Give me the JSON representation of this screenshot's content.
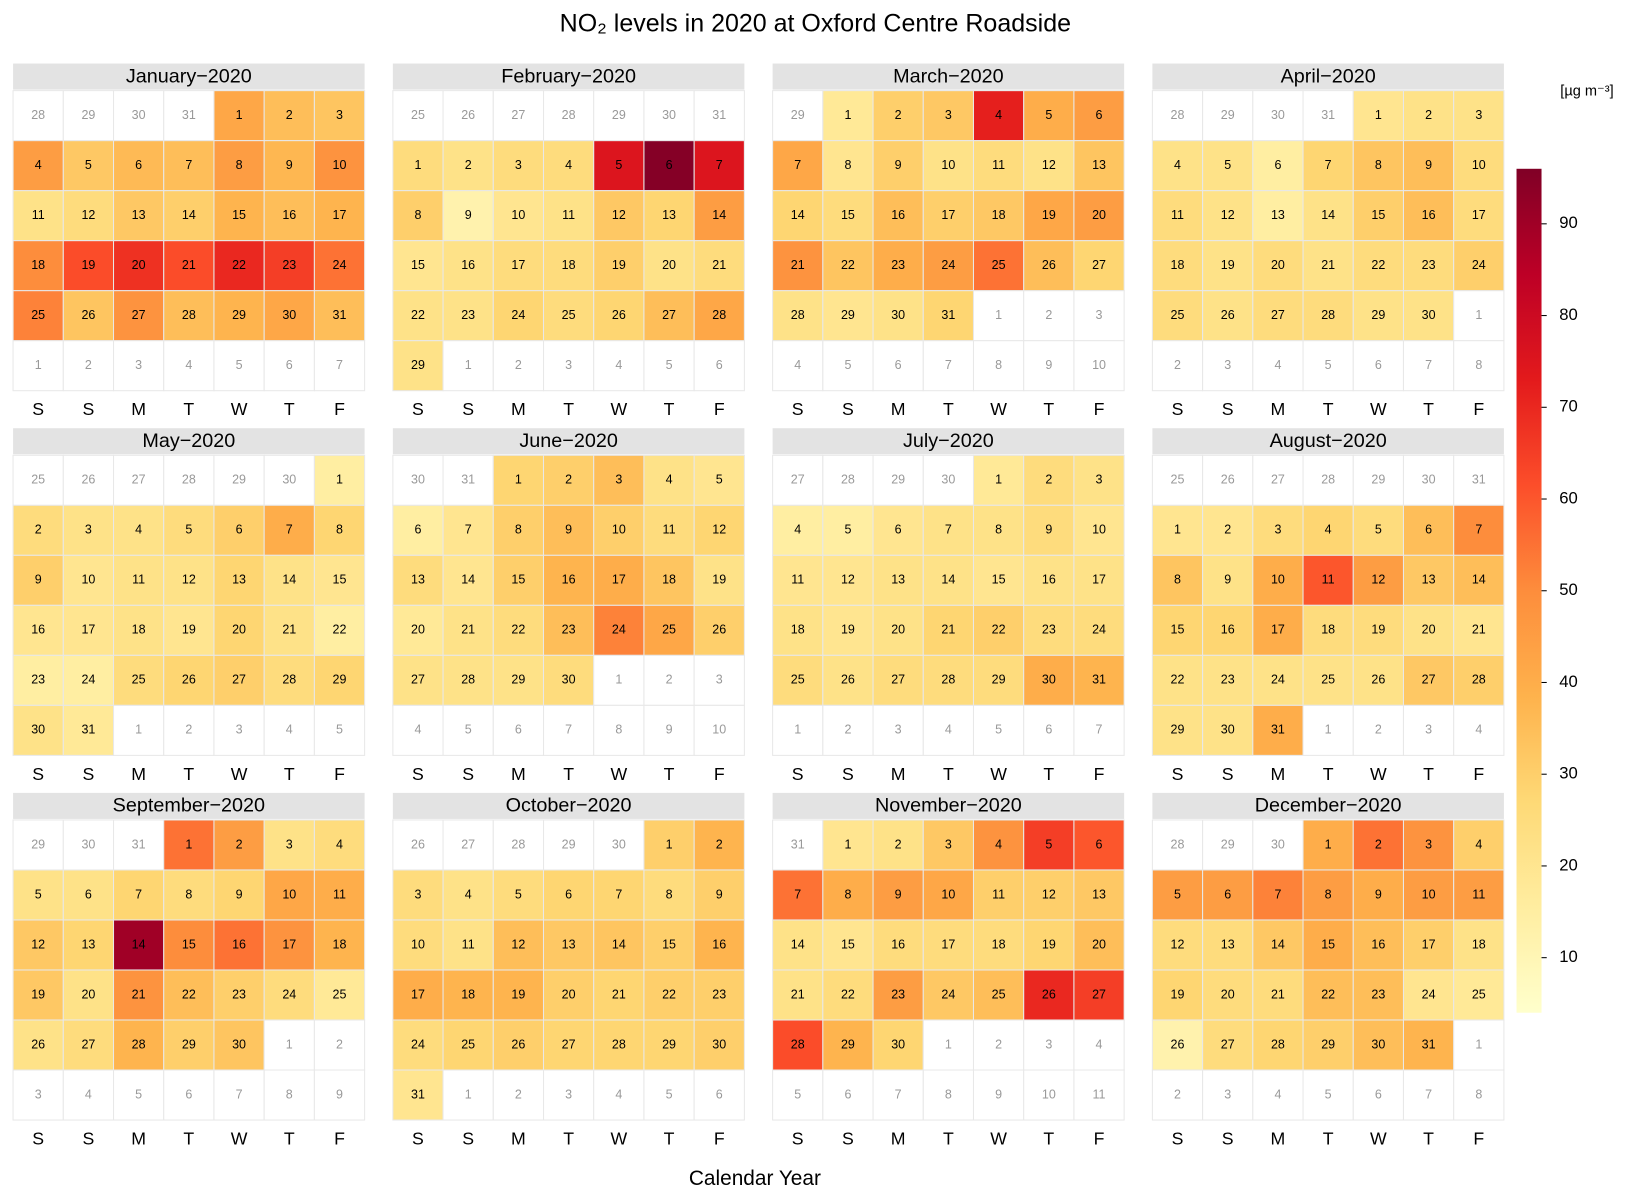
{
  "chart_data": {
    "type": "calendar",
    "title": "NO₂ levels in 2020 at Oxford Centre Roadside",
    "xlabel": "Calendar Year",
    "colorbar_label": "[µg m⁻³]",
    "weekdays": [
      "S",
      "S",
      "M",
      "T",
      "W",
      "T",
      "F"
    ],
    "zlim": [
      4,
      96
    ],
    "zticks": [
      10,
      20,
      30,
      40,
      50,
      60,
      70,
      80,
      90
    ],
    "colorscale": [
      "#FFFFCC",
      "#FFEDA0",
      "#FED976",
      "#FEB24C",
      "#FD8D3C",
      "#FC4E2A",
      "#E31A1C",
      "#BD0026",
      "#800026"
    ],
    "months": [
      {
        "name": "January−2020",
        "days_before": [
          28,
          29,
          30,
          31
        ],
        "days": [
          1,
          2,
          3,
          4,
          5,
          6,
          7,
          8,
          9,
          10,
          11,
          12,
          13,
          14,
          15,
          16,
          17,
          18,
          19,
          20,
          21,
          22,
          23,
          24,
          25,
          26,
          27,
          28,
          29,
          30,
          31
        ],
        "values": [
          42,
          35,
          33,
          45,
          32,
          36,
          35,
          45,
          37,
          48,
          22,
          25,
          32,
          30,
          38,
          35,
          38,
          50,
          62,
          68,
          62,
          70,
          65,
          55,
          52,
          33,
          48,
          35,
          38,
          42,
          35
        ],
        "days_after": [
          1,
          2,
          3,
          4,
          5,
          6,
          7
        ]
      },
      {
        "name": "February−2020",
        "days_before": [
          25,
          26,
          27,
          28,
          29,
          30,
          31
        ],
        "days": [
          1,
          2,
          3,
          4,
          5,
          6,
          7,
          8,
          9,
          10,
          11,
          12,
          13,
          14,
          15,
          16,
          17,
          18,
          19,
          20,
          21,
          22,
          23,
          24,
          25,
          26,
          27,
          28,
          29
        ],
        "values": [
          25,
          22,
          25,
          25,
          75,
          95,
          75,
          30,
          12,
          20,
          22,
          32,
          28,
          45,
          20,
          22,
          25,
          25,
          30,
          22,
          25,
          22,
          22,
          28,
          25,
          28,
          35,
          42,
          22
        ],
        "days_after": [
          1,
          2,
          3,
          4,
          5,
          6
        ]
      },
      {
        "name": "March−2020",
        "days_before": [
          29
        ],
        "days": [
          1,
          2,
          3,
          4,
          5,
          6,
          7,
          8,
          9,
          10,
          11,
          12,
          13,
          14,
          15,
          16,
          17,
          18,
          19,
          20,
          21,
          22,
          23,
          24,
          25,
          26,
          27,
          28,
          29,
          30,
          31
        ],
        "values": [
          18,
          30,
          32,
          72,
          40,
          45,
          42,
          20,
          30,
          22,
          25,
          22,
          33,
          28,
          25,
          35,
          30,
          32,
          42,
          45,
          48,
          33,
          40,
          45,
          55,
          35,
          28,
          22,
          20,
          22,
          28
        ],
        "days_after": [
          1,
          2,
          3,
          4,
          5,
          6,
          7,
          8,
          9,
          10
        ]
      },
      {
        "name": "April−2020",
        "days_before": [
          28,
          29,
          30,
          31
        ],
        "days": [
          1,
          2,
          3,
          4,
          5,
          6,
          7,
          8,
          9,
          10,
          11,
          12,
          13,
          14,
          15,
          16,
          17,
          18,
          19,
          20,
          21,
          22,
          23,
          24,
          25,
          26,
          27,
          28,
          29,
          30
        ],
        "values": [
          20,
          22,
          22,
          22,
          22,
          15,
          28,
          33,
          35,
          25,
          25,
          22,
          15,
          22,
          30,
          35,
          25,
          25,
          22,
          25,
          22,
          25,
          25,
          30,
          25,
          22,
          25,
          25,
          22,
          22
        ],
        "days_after": [
          1,
          2,
          3,
          4,
          5,
          6,
          7,
          8
        ]
      },
      {
        "name": "May−2020",
        "days_before": [
          25,
          26,
          27,
          28,
          29,
          30
        ],
        "days": [
          1,
          2,
          3,
          4,
          5,
          6,
          7,
          8,
          9,
          10,
          11,
          12,
          13,
          14,
          15,
          16,
          17,
          18,
          19,
          20,
          21,
          22,
          23,
          24,
          25,
          26,
          27,
          28,
          29,
          30,
          31
        ],
        "values": [
          15,
          25,
          22,
          22,
          25,
          30,
          40,
          28,
          30,
          20,
          22,
          22,
          28,
          22,
          20,
          20,
          20,
          22,
          20,
          28,
          22,
          15,
          15,
          15,
          25,
          28,
          30,
          25,
          28,
          22,
          18
        ],
        "days_after": [
          1,
          2,
          3,
          4,
          5
        ]
      },
      {
        "name": "June−2020",
        "days_before": [
          30,
          31
        ],
        "days": [
          1,
          2,
          3,
          4,
          5,
          6,
          7,
          8,
          9,
          10,
          11,
          12,
          13,
          14,
          15,
          16,
          17,
          18,
          19,
          20,
          21,
          22,
          23,
          24,
          25,
          26,
          27,
          28,
          29,
          30
        ],
        "values": [
          28,
          30,
          35,
          22,
          20,
          15,
          20,
          30,
          35,
          30,
          25,
          28,
          25,
          20,
          30,
          38,
          40,
          33,
          22,
          18,
          22,
          25,
          35,
          52,
          42,
          30,
          22,
          22,
          22,
          25
        ],
        "days_after": [
          1,
          2,
          3,
          4,
          5,
          6,
          7,
          8,
          9,
          10
        ]
      },
      {
        "name": "July−2020",
        "days_before": [
          27,
          28,
          29,
          30
        ],
        "days": [
          1,
          2,
          3,
          4,
          5,
          6,
          7,
          8,
          9,
          10,
          11,
          12,
          13,
          14,
          15,
          16,
          17,
          18,
          19,
          20,
          21,
          22,
          23,
          24,
          25,
          26,
          27,
          28,
          29,
          30,
          31
        ],
        "values": [
          18,
          25,
          22,
          15,
          15,
          20,
          22,
          22,
          25,
          20,
          20,
          20,
          22,
          22,
          20,
          22,
          22,
          22,
          20,
          22,
          28,
          30,
          25,
          25,
          25,
          22,
          25,
          25,
          25,
          40,
          38
        ],
        "days_after": [
          1,
          2,
          3,
          4,
          5,
          6,
          7
        ]
      },
      {
        "name": "August−2020",
        "days_before": [
          25,
          26,
          27,
          28,
          29,
          30,
          31
        ],
        "days": [
          1,
          2,
          3,
          4,
          5,
          6,
          7,
          8,
          9,
          10,
          11,
          12,
          13,
          14,
          15,
          16,
          17,
          18,
          19,
          20,
          21,
          22,
          23,
          24,
          25,
          26,
          27,
          28,
          29,
          30,
          31
        ],
        "values": [
          20,
          20,
          25,
          28,
          25,
          35,
          50,
          33,
          22,
          40,
          60,
          45,
          32,
          35,
          28,
          28,
          40,
          25,
          25,
          22,
          20,
          22,
          22,
          22,
          22,
          22,
          32,
          30,
          22,
          22,
          40
        ],
        "days_after": [
          1,
          2,
          3,
          4
        ]
      },
      {
        "name": "September−2020",
        "days_before": [
          29,
          30,
          31
        ],
        "days": [
          1,
          2,
          3,
          4,
          5,
          6,
          7,
          8,
          9,
          10,
          11,
          12,
          13,
          14,
          15,
          16,
          17,
          18,
          19,
          20,
          21,
          22,
          23,
          24,
          25,
          26,
          27,
          28,
          29,
          30
        ],
        "values": [
          55,
          45,
          22,
          25,
          22,
          22,
          28,
          25,
          28,
          42,
          40,
          32,
          28,
          90,
          50,
          55,
          48,
          38,
          32,
          22,
          48,
          35,
          30,
          25,
          18,
          22,
          25,
          38,
          30,
          33
        ],
        "days_after": [
          1,
          2,
          3,
          4,
          5,
          6,
          7,
          8,
          9
        ]
      },
      {
        "name": "October−2020",
        "days_before": [
          26,
          27,
          28,
          29,
          30
        ],
        "days": [
          1,
          2,
          3,
          4,
          5,
          6,
          7,
          8,
          9,
          10,
          11,
          12,
          13,
          14,
          15,
          16,
          17,
          18,
          19,
          20,
          21,
          22,
          23,
          24,
          25,
          26,
          27,
          28,
          29,
          30,
          31
        ],
        "values": [
          30,
          38,
          25,
          22,
          25,
          28,
          28,
          25,
          30,
          25,
          22,
          35,
          32,
          33,
          30,
          38,
          40,
          38,
          38,
          30,
          28,
          30,
          30,
          25,
          28,
          30,
          28,
          28,
          28,
          30,
          20
        ],
        "days_after": [
          1,
          2,
          3,
          4,
          5,
          6
        ]
      },
      {
        "name": "November−2020",
        "days_before": [
          31
        ],
        "days": [
          1,
          2,
          3,
          4,
          5,
          6,
          7,
          8,
          9,
          10,
          11,
          12,
          13,
          14,
          15,
          16,
          17,
          18,
          19,
          20,
          21,
          22,
          23,
          24,
          25,
          26,
          27,
          28,
          29,
          30
        ],
        "values": [
          20,
          22,
          32,
          48,
          65,
          60,
          55,
          40,
          45,
          42,
          30,
          30,
          32,
          22,
          20,
          25,
          25,
          25,
          28,
          35,
          22,
          25,
          45,
          32,
          35,
          70,
          65,
          62,
          38,
          28
        ],
        "days_after": [
          1,
          2,
          3,
          4,
          5,
          6,
          7,
          8,
          9,
          10,
          11
        ]
      },
      {
        "name": "December−2020",
        "days_before": [
          28,
          29,
          30
        ],
        "days": [
          1,
          2,
          3,
          4,
          5,
          6,
          7,
          8,
          9,
          10,
          11,
          12,
          13,
          14,
          15,
          16,
          17,
          18,
          19,
          20,
          21,
          22,
          23,
          24,
          25,
          26,
          27,
          28,
          29,
          30,
          31
        ],
        "values": [
          40,
          55,
          48,
          30,
          45,
          45,
          52,
          45,
          40,
          45,
          45,
          25,
          25,
          32,
          40,
          35,
          30,
          22,
          28,
          25,
          25,
          35,
          35,
          20,
          18,
          12,
          25,
          28,
          30,
          35,
          38
        ],
        "days_after": [
          1,
          2,
          3,
          4,
          5,
          6,
          7,
          8
        ]
      }
    ]
  }
}
